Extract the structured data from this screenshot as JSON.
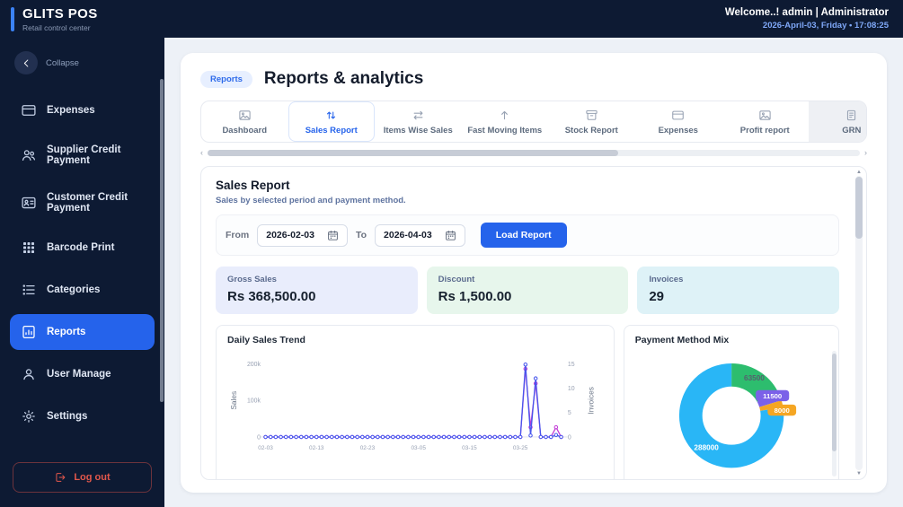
{
  "topbar": {
    "logo_title": "GLITS POS",
    "logo_subtitle": "Retail control center",
    "welcome": "Welcome..! admin | Administrator",
    "datetime": "2026-April-03, Friday  •  17:08:25"
  },
  "sidebar": {
    "collapse_label": "Collapse",
    "items": [
      {
        "label": "Expenses",
        "icon": "credit-card"
      },
      {
        "label": "Supplier Credit Payment",
        "icon": "users"
      },
      {
        "label": "Customer Credit Payment",
        "icon": "id-card"
      },
      {
        "label": "Barcode Print",
        "icon": "grid-dots"
      },
      {
        "label": "Categories",
        "icon": "list"
      },
      {
        "label": "Reports",
        "icon": "report"
      },
      {
        "label": "User Manage",
        "icon": "user"
      },
      {
        "label": "Settings",
        "icon": "gear"
      }
    ],
    "logout_label": "Log out"
  },
  "header": {
    "badge": "Reports",
    "title": "Reports & analytics"
  },
  "tabs": [
    {
      "label": "Dashboard",
      "icon": "image"
    },
    {
      "label": "Sales Report",
      "icon": "sort-arrows"
    },
    {
      "label": "Items Wise Sales",
      "icon": "swap-arrows"
    },
    {
      "label": "Fast Moving Items",
      "icon": "arrow-up"
    },
    {
      "label": "Stock Report",
      "icon": "archive"
    },
    {
      "label": "Expenses",
      "icon": "credit-card"
    },
    {
      "label": "Profit report",
      "icon": "image"
    },
    {
      "label": "GRN",
      "icon": "scroll"
    }
  ],
  "report": {
    "title": "Sales Report",
    "subtitle": "Sales by selected period and payment method.",
    "filters": {
      "from_label": "From",
      "from_value": "2026-02-03",
      "to_label": "To",
      "to_value": "2026-04-03",
      "button": "Load Report"
    },
    "stats": [
      {
        "label": "Gross Sales",
        "value": "Rs 368,500.00",
        "bg": "#e9edfc"
      },
      {
        "label": "Discount",
        "value": "Rs 1,500.00",
        "bg": "#e7f6ec"
      },
      {
        "label": "Invoices",
        "value": "29",
        "bg": "#def2f7"
      }
    ]
  },
  "icons": {
    "collapse": "chevron-left",
    "logout": "logout",
    "calendar": "calendar",
    "hscroll_left": "‹",
    "hscroll_right": "›",
    "vscroll_up": "▲",
    "vscroll_down": "▼"
  },
  "chart_data": [
    {
      "type": "line",
      "title": "Daily Sales Trend",
      "x_ticks": [
        "02-03",
        "02-13",
        "02-23",
        "03-05",
        "03-15",
        "03-25"
      ],
      "left_axis": {
        "label": "Sales",
        "ticks": [
          "0",
          "100k",
          "200k"
        ],
        "tick_values": [
          0,
          100000,
          200000
        ],
        "max": 200000
      },
      "right_axis": {
        "label": "Invoices",
        "ticks": [
          "0",
          "5",
          "10",
          "15"
        ],
        "tick_values": [
          0,
          5,
          10,
          15
        ],
        "max": 15
      },
      "x": [
        "02-03",
        "02-04",
        "02-05",
        "02-06",
        "02-07",
        "02-08",
        "02-09",
        "02-10",
        "02-11",
        "02-12",
        "02-13",
        "02-14",
        "02-15",
        "02-16",
        "02-17",
        "02-18",
        "02-19",
        "02-20",
        "02-21",
        "02-22",
        "02-23",
        "02-24",
        "02-25",
        "02-26",
        "02-27",
        "02-28",
        "03-01",
        "03-02",
        "03-03",
        "03-04",
        "03-05",
        "03-06",
        "03-07",
        "03-08",
        "03-09",
        "03-10",
        "03-11",
        "03-12",
        "03-13",
        "03-14",
        "03-15",
        "03-16",
        "03-17",
        "03-18",
        "03-19",
        "03-20",
        "03-21",
        "03-22",
        "03-23",
        "03-24",
        "03-25",
        "03-26",
        "03-27",
        "03-28",
        "03-29",
        "03-30",
        "03-31",
        "04-01",
        "04-02"
      ],
      "series": [
        {
          "name": "Sales",
          "axis": "left",
          "color": "#4756ec",
          "values": [
            0,
            0,
            0,
            0,
            0,
            0,
            0,
            0,
            0,
            0,
            0,
            0,
            0,
            0,
            0,
            0,
            0,
            0,
            0,
            0,
            0,
            0,
            0,
            0,
            0,
            0,
            0,
            0,
            0,
            0,
            0,
            0,
            0,
            0,
            0,
            0,
            0,
            0,
            0,
            0,
            0,
            0,
            0,
            0,
            0,
            0,
            0,
            0,
            0,
            0,
            0,
            198500,
            4000,
            160500,
            0,
            0,
            0,
            5500,
            0
          ]
        },
        {
          "name": "Invoices",
          "axis": "right",
          "color": "#c13bd6",
          "values": [
            0,
            0,
            0,
            0,
            0,
            0,
            0,
            0,
            0,
            0,
            0,
            0,
            0,
            0,
            0,
            0,
            0,
            0,
            0,
            0,
            0,
            0,
            0,
            0,
            0,
            0,
            0,
            0,
            0,
            0,
            0,
            0,
            0,
            0,
            0,
            0,
            0,
            0,
            0,
            0,
            0,
            0,
            0,
            0,
            0,
            0,
            0,
            0,
            0,
            0,
            0,
            14,
            2,
            11,
            0,
            0,
            0,
            2,
            0
          ]
        }
      ]
    },
    {
      "type": "donut",
      "title": "Payment Method Mix",
      "slices": [
        {
          "label": "63500",
          "value": 63500,
          "color": "#2dbd6e",
          "pill": false,
          "text_color": "#55606e"
        },
        {
          "label": "11500",
          "value": 11500,
          "color": "#7b61e8",
          "pill": true,
          "text_color": "#ffffff"
        },
        {
          "label": "8000",
          "value": 8000,
          "color": "#f5a623",
          "pill": true,
          "text_color": "#ffffff"
        },
        {
          "label": "288000",
          "value": 288000,
          "color": "#29b6f6",
          "pill": false,
          "text_color": "#ffffff"
        }
      ]
    }
  ]
}
